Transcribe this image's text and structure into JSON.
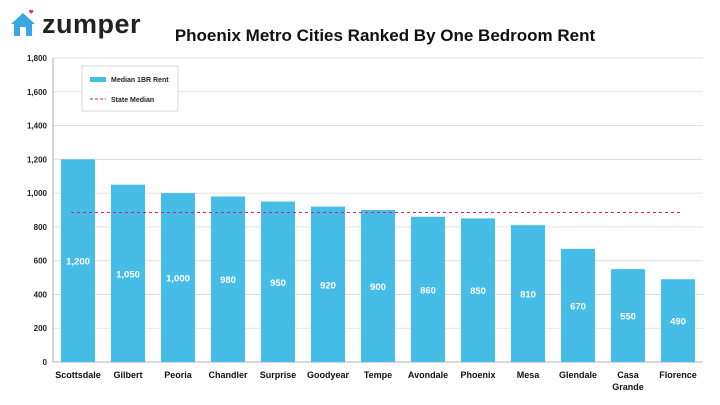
{
  "brand": {
    "name": "zumper",
    "logo_icon": "house-heart-icon"
  },
  "colors": {
    "bar": "#45bde6",
    "state_line": "#c2268a",
    "brand_icon": "#3aa8e0",
    "brand_heart": "#e0317a",
    "grid": "#d9d9d9"
  },
  "chart_data": {
    "type": "bar",
    "title": "Phoenix Metro Cities Ranked By One Bedroom Rent",
    "xlabel": "",
    "ylabel": "",
    "categories": [
      "Scottsdale",
      "Gilbert",
      "Peoria",
      "Chandler",
      "Surprise",
      "Goodyear",
      "Tempe",
      "Avondale",
      "Phoenix",
      "Mesa",
      "Glendale",
      "Casa Grande",
      "Florence"
    ],
    "category_lines": [
      [
        "Scottsdale"
      ],
      [
        "Gilbert"
      ],
      [
        "Peoria"
      ],
      [
        "Chandler"
      ],
      [
        "Surprise"
      ],
      [
        "Goodyear"
      ],
      [
        "Tempe"
      ],
      [
        "Avondale"
      ],
      [
        "Phoenix"
      ],
      [
        "Mesa"
      ],
      [
        "Glendale"
      ],
      [
        "Casa",
        "Grande"
      ],
      [
        "Florence"
      ]
    ],
    "series": [
      {
        "name": "Median 1BR Rent",
        "values": [
          1200,
          1050,
          1000,
          980,
          950,
          920,
          900,
          860,
          850,
          810,
          670,
          550,
          490
        ]
      }
    ],
    "data_labels": [
      "1,200",
      "1,050",
      "1,000",
      "980",
      "950",
      "920",
      "900",
      "860",
      "850",
      "810",
      "670",
      "550",
      "490"
    ],
    "reference_line": {
      "name": "State Median",
      "value": 885,
      "style": "dashed"
    },
    "ylim": [
      0,
      1800
    ],
    "yticks": [
      0,
      200,
      400,
      600,
      800,
      1000,
      1200,
      1400,
      1600,
      1800
    ],
    "ytick_labels": [
      "0",
      "200",
      "400",
      "600",
      "800",
      "1,000",
      "1,200",
      "1,400",
      "1,600",
      "1,800"
    ],
    "grid": true,
    "legend_position": "top-left"
  }
}
